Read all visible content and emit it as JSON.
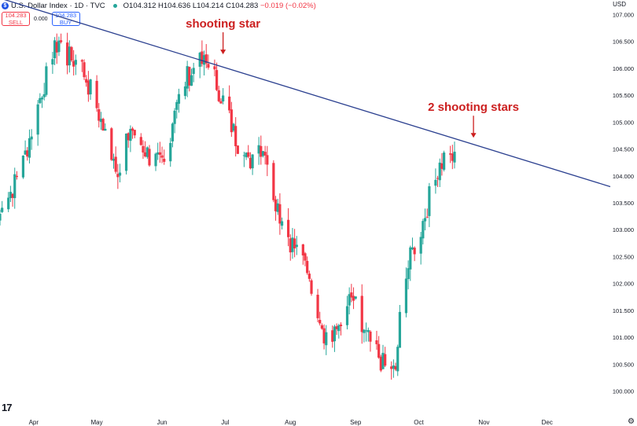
{
  "header": {
    "symbol": "U.S. Dollar Index · 1D · TVC",
    "logo": "$",
    "ohlc": "O104.312 H104.636 L104.214 C104.283",
    "change": "−0.019 (−0.02%)",
    "sell_price": "104.283",
    "sell_label": "SELL",
    "spread": "0.000",
    "buy_price": "104.283",
    "buy_label": "BUY",
    "currency": "USD",
    "watermark": "17"
  },
  "colors": {
    "up": "#26a69a",
    "down": "#f23645",
    "trendline": "#2a3f8f",
    "annotation": "#cc1f1f",
    "axis_text": "#131722"
  },
  "chart_data": {
    "type": "candlestick",
    "x_ticks": [
      "Apr",
      "May",
      "Jun",
      "Jul",
      "Aug",
      "Sep",
      "Oct",
      "Nov",
      "Dec"
    ],
    "y_ticks": [
      "100.000",
      "100.500",
      "101.000",
      "101.500",
      "102.000",
      "102.500",
      "103.000",
      "103.500",
      "104.000",
      "104.500",
      "105.000",
      "105.500",
      "106.000",
      "106.500",
      "107.000"
    ],
    "ylim": [
      99.85,
      107.15
    ],
    "x_range": [
      "2023-03-16",
      "2023-12-31"
    ],
    "start_date": "2023-03-16",
    "close_path": [
      [
        0,
        103.3
      ],
      [
        10,
        104.1
      ],
      [
        20,
        105.6
      ],
      [
        28,
        106.55
      ],
      [
        32,
        106.2
      ],
      [
        38,
        106.1
      ],
      [
        45,
        105.4
      ],
      [
        52,
        104.5
      ],
      [
        57,
        104.1
      ],
      [
        62,
        104.9
      ],
      [
        72,
        104.3
      ],
      [
        78,
        104.15
      ],
      [
        84,
        105.5
      ],
      [
        90,
        105.9
      ],
      [
        96,
        106.1
      ],
      [
        100,
        106.0
      ],
      [
        106,
        105.4
      ],
      [
        112,
        104.7
      ],
      [
        118,
        104.2
      ],
      [
        122,
        104.6
      ],
      [
        126,
        104.5
      ],
      [
        130,
        103.7
      ],
      [
        133,
        103.3
      ],
      [
        138,
        102.8
      ],
      [
        146,
        102.3
      ],
      [
        154,
        101.1
      ],
      [
        158,
        100.9
      ],
      [
        163,
        101.5
      ],
      [
        168,
        101.7
      ],
      [
        172,
        101.1
      ],
      [
        178,
        100.8
      ],
      [
        182,
        100.5
      ],
      [
        186,
        100.3
      ],
      [
        188,
        100.4
      ],
      [
        190,
        101.3
      ],
      [
        192,
        102.0
      ],
      [
        196,
        102.6
      ],
      [
        200,
        103.0
      ],
      [
        204,
        103.6
      ],
      [
        208,
        104.1
      ],
      [
        212,
        104.4
      ],
      [
        216,
        104.3
      ]
    ],
    "trendline": [
      [
        "2023-03-16",
        107.3
      ],
      [
        "2023-12-31",
        103.8
      ]
    ],
    "annotations": [
      {
        "text": "shooting star",
        "date": "2023-06-30",
        "price": 106.2
      },
      {
        "text": "2 shooting stars",
        "date": "2023-10-27",
        "price": 104.65
      }
    ],
    "grid": false,
    "legend": "none"
  }
}
